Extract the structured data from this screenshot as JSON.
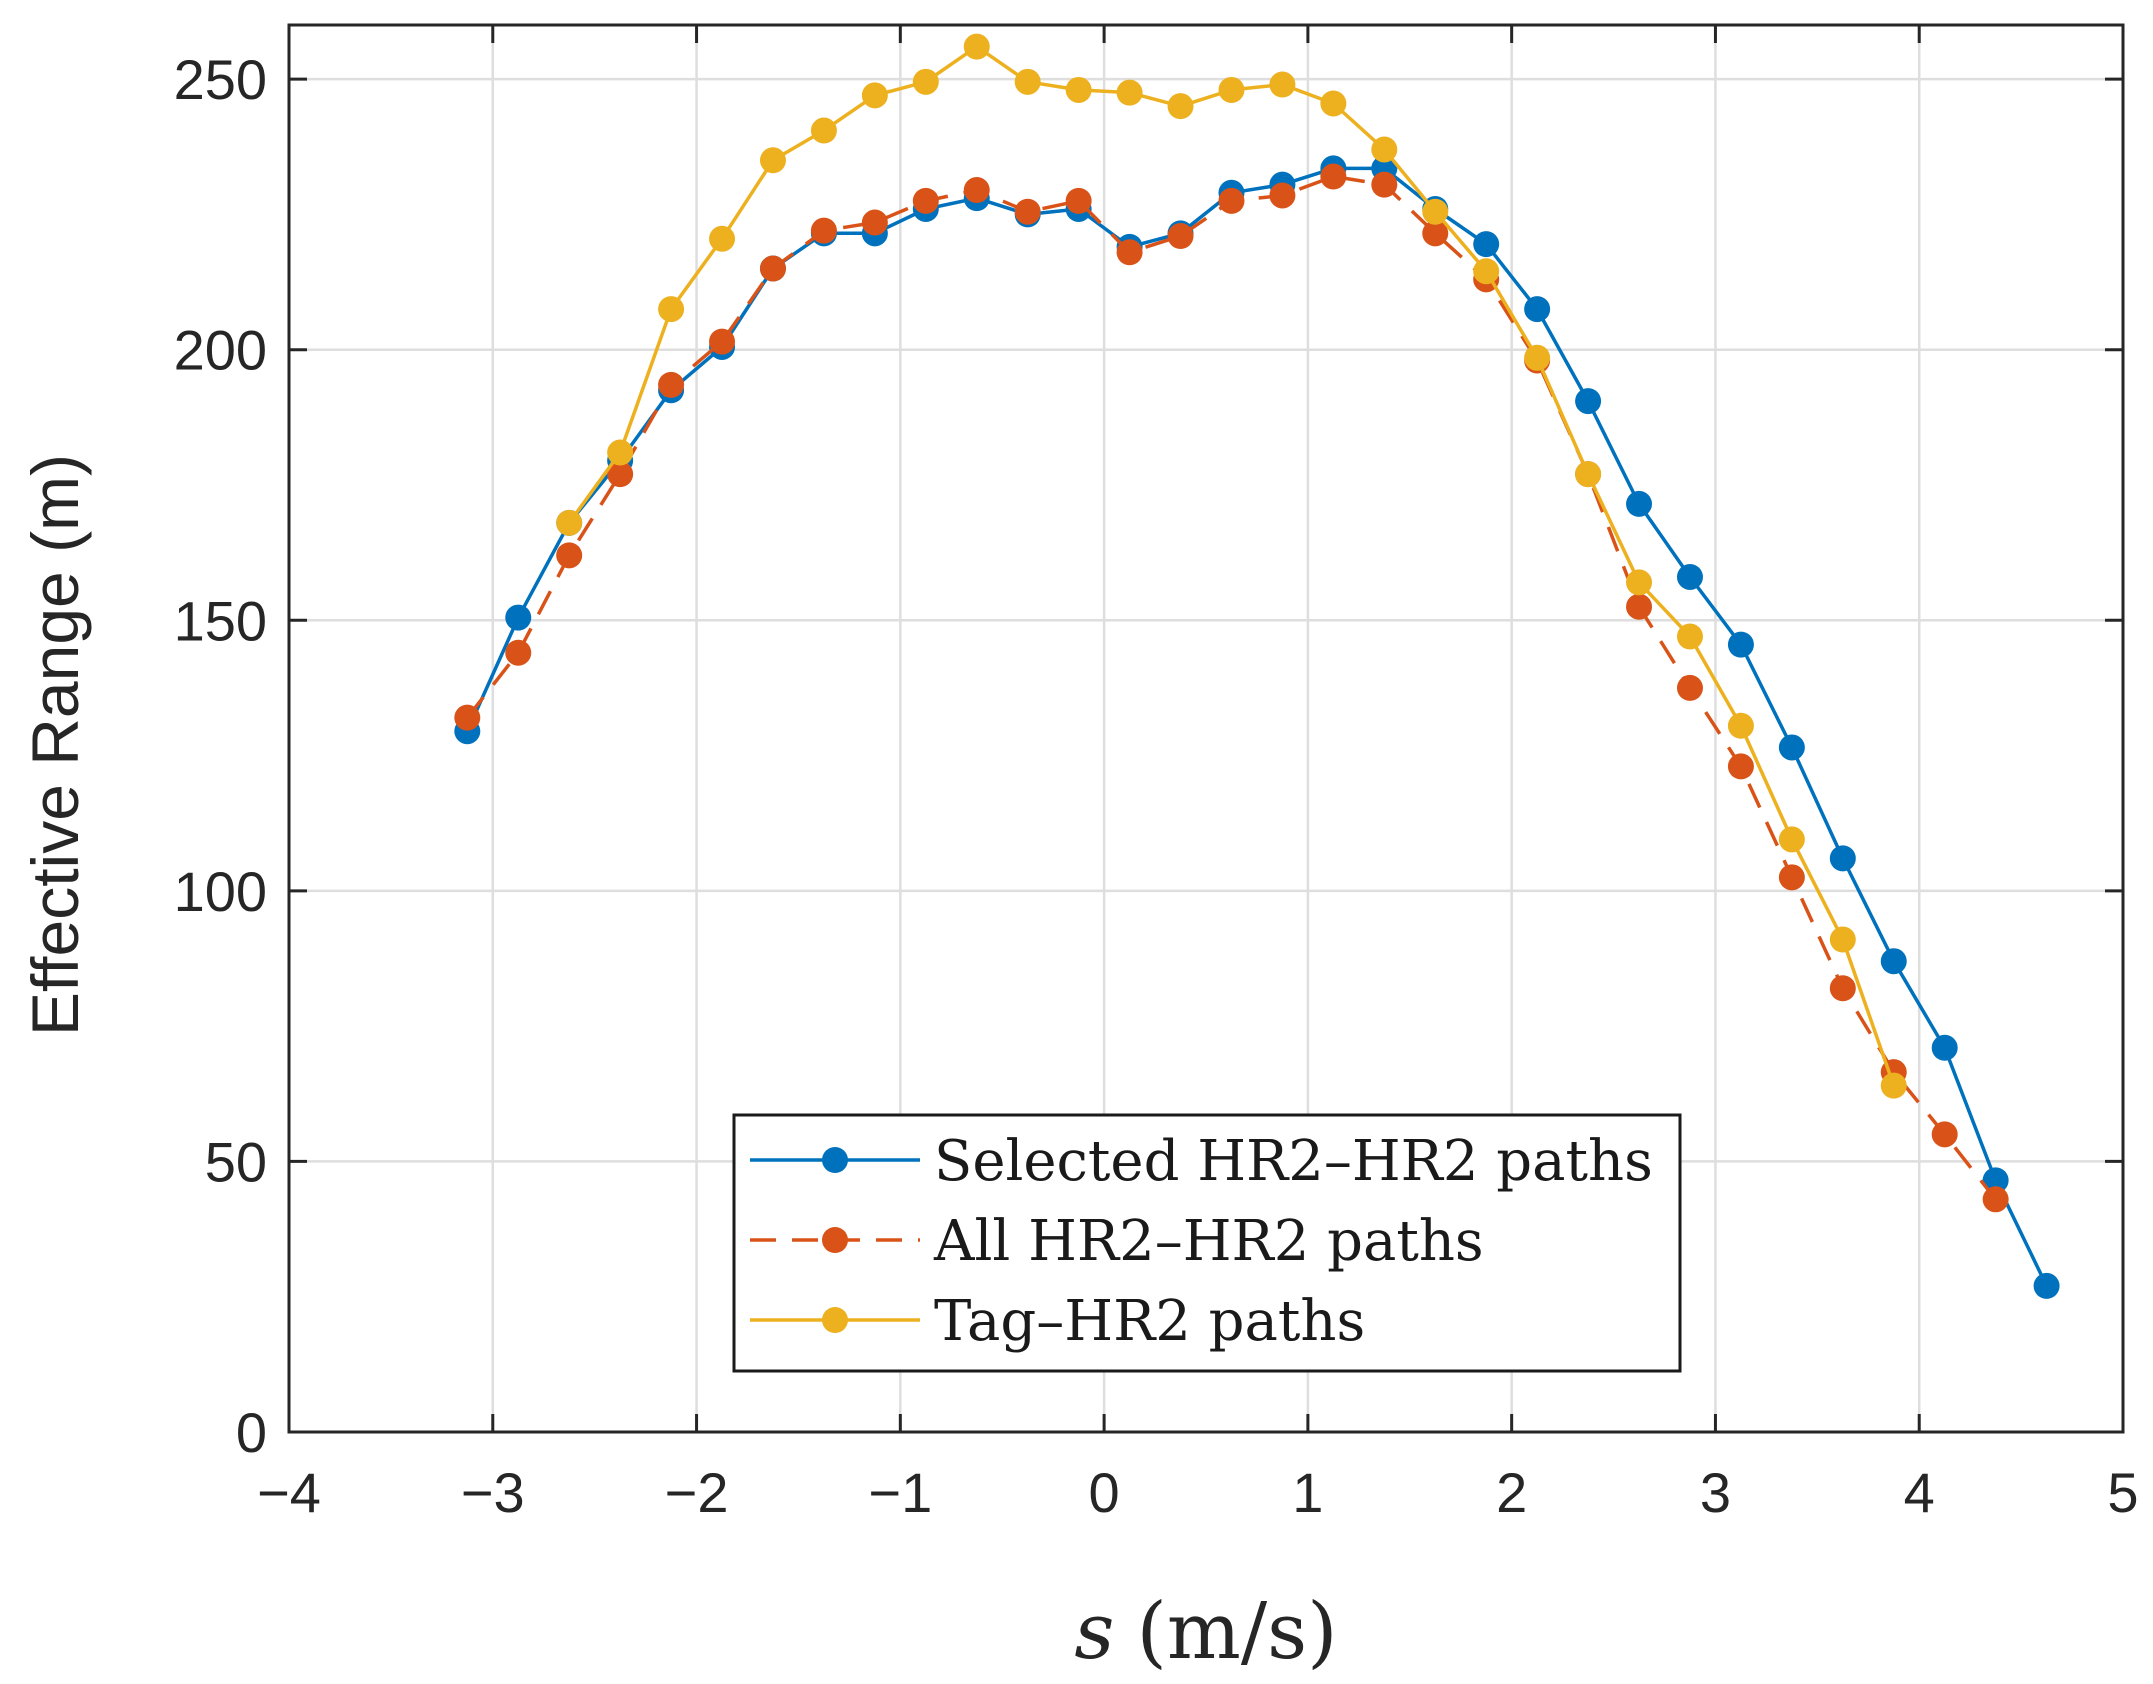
{
  "chart_data": {
    "type": "line",
    "title": "",
    "xlabel": "(m/s)",
    "xlabel_symbol": "s",
    "ylabel": "Effective Range (m)",
    "xlim": [
      -4,
      5
    ],
    "ylim": [
      0,
      260
    ],
    "grid": true,
    "legend_position": "bottom-center",
    "xticks": [
      -4,
      -3,
      -2,
      -1,
      0,
      1,
      2,
      3,
      4,
      5
    ],
    "xtick_labels": [
      "−4",
      "−3",
      "−2",
      "−1",
      "0",
      "1",
      "2",
      "3",
      "4",
      "5"
    ],
    "yticks": [
      0,
      50,
      100,
      150,
      200,
      250
    ],
    "ytick_labels": [
      "0",
      "50",
      "100",
      "150",
      "200",
      "250"
    ],
    "series": [
      {
        "name": "Selected HR2–HR2 paths",
        "color": "#0072BD",
        "dash": "solid",
        "x": [
          -3.125,
          -2.875,
          -2.625,
          -2.375,
          -2.125,
          -1.875,
          -1.625,
          -1.375,
          -1.125,
          -0.875,
          -0.625,
          -0.375,
          -0.125,
          0.125,
          0.375,
          0.625,
          0.875,
          1.125,
          1.375,
          1.625,
          1.875,
          2.125,
          2.375,
          2.625,
          2.875,
          3.125,
          3.375,
          3.625,
          3.875,
          4.125,
          4.375,
          4.625
        ],
        "values": [
          129.5,
          150.5,
          168,
          179.5,
          192.5,
          200.5,
          215,
          221.5,
          221.5,
          226,
          228,
          225,
          226,
          219,
          221.5,
          229,
          230.5,
          233.5,
          233.5,
          226,
          219.5,
          207.5,
          190.5,
          171.5,
          158,
          145.5,
          126.5,
          106,
          87,
          71,
          46.5,
          27
        ]
      },
      {
        "name": "All HR2–HR2 paths",
        "color": "#D95319",
        "dash": "dashed",
        "x": [
          -3.125,
          -2.875,
          -2.625,
          -2.375,
          -2.125,
          -1.875,
          -1.625,
          -1.375,
          -1.125,
          -0.875,
          -0.625,
          -0.375,
          -0.125,
          0.125,
          0.375,
          0.625,
          0.875,
          1.125,
          1.375,
          1.625,
          1.875,
          2.125,
          2.375,
          2.625,
          2.875,
          3.125,
          3.375,
          3.625,
          3.875,
          4.125,
          4.375
        ],
        "values": [
          132,
          144,
          162,
          177,
          193.5,
          201.5,
          215,
          222,
          223.5,
          227.5,
          229.5,
          225.5,
          227.5,
          218,
          221,
          227.5,
          228.5,
          232,
          230.5,
          221.5,
          213,
          198,
          177,
          152.5,
          137.5,
          123,
          102.5,
          82,
          66.5,
          55,
          43
        ]
      },
      {
        "name": "Tag–HR2 paths",
        "color": "#EDB120",
        "dash": "solid",
        "x": [
          -2.625,
          -2.375,
          -2.125,
          -1.875,
          -1.625,
          -1.375,
          -1.125,
          -0.875,
          -0.625,
          -0.375,
          -0.125,
          0.125,
          0.375,
          0.625,
          0.875,
          1.125,
          1.375,
          1.625,
          1.875,
          2.125,
          2.375,
          2.625,
          2.875,
          3.125,
          3.375,
          3.625,
          3.875
        ],
        "values": [
          168,
          181,
          207.5,
          220.5,
          235,
          240.5,
          247,
          249.5,
          256,
          249.5,
          248,
          247.5,
          245,
          248,
          249,
          245.5,
          237,
          225.5,
          214.5,
          198.5,
          177,
          157,
          147,
          130.5,
          109.5,
          91,
          64
        ]
      }
    ]
  }
}
